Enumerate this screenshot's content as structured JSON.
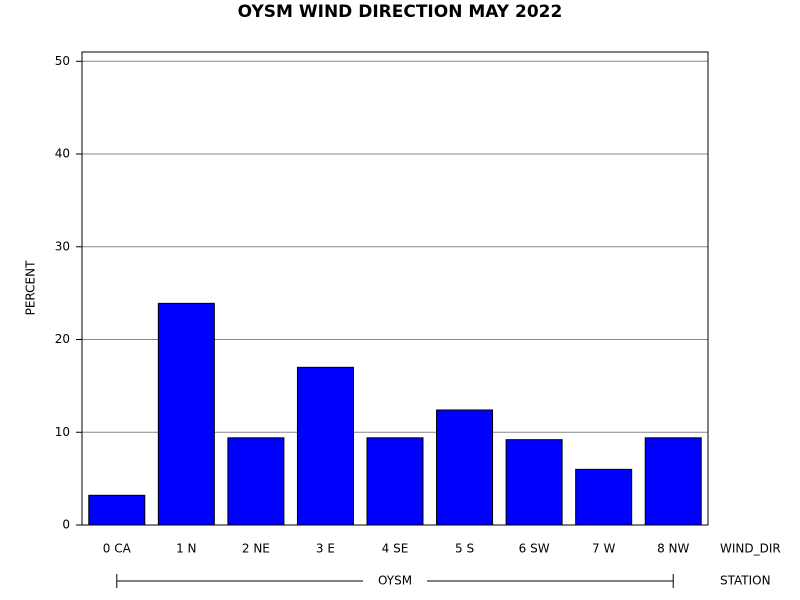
{
  "chart_data": {
    "type": "bar",
    "title": "OYSM WIND DIRECTION MAY 2022",
    "y_label": "PERCENT",
    "x_label": "WIND_DIR",
    "group_label": "STATION",
    "group": "OYSM",
    "categories": [
      "0 CA",
      "1 N",
      "2 NE",
      "3 E",
      "4 SE",
      "5 S",
      "6 SW",
      "7 W",
      "8 NW"
    ],
    "values": [
      3.2,
      23.9,
      9.4,
      17.0,
      9.4,
      12.4,
      9.2,
      6.0,
      9.4
    ],
    "color": "#0000ff",
    "ylim": [
      0,
      51
    ],
    "yticks": [
      0,
      10,
      20,
      30,
      40,
      50
    ],
    "grid": true
  }
}
